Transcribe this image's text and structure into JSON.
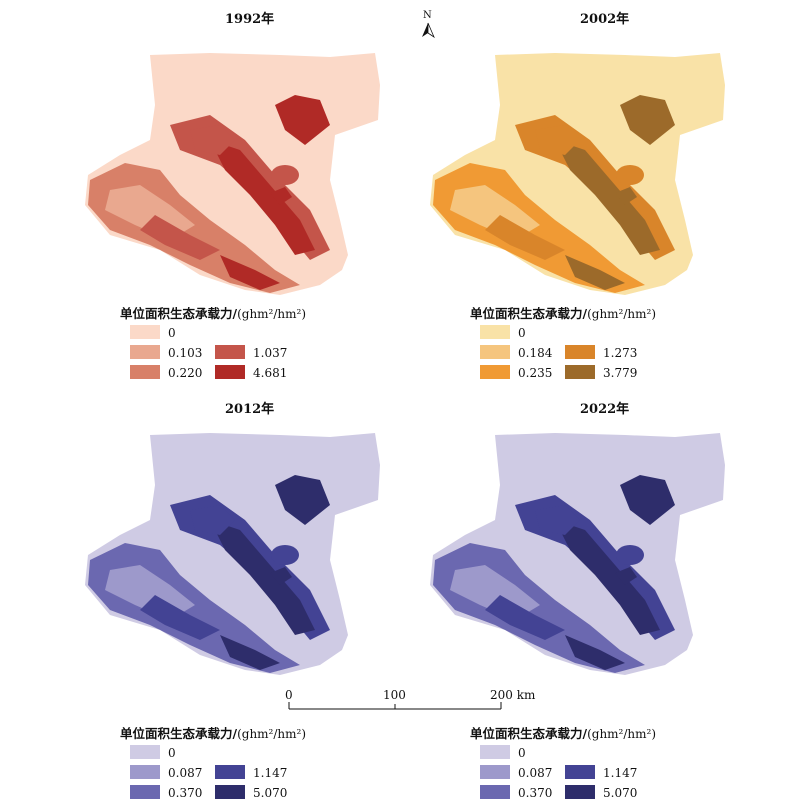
{
  "maps": [
    {
      "year": "1992年",
      "colors": [
        "#fbd9c8",
        "#e9a88f",
        "#d88068",
        "#c4554a",
        "#b02a26"
      ],
      "values": [
        "0",
        "0.103",
        "0.220",
        "1.037",
        "4.681"
      ]
    },
    {
      "year": "2002年",
      "colors": [
        "#f9e2a7",
        "#f5c57e",
        "#f09a34",
        "#d9852a",
        "#9c6a2a"
      ],
      "values": [
        "0",
        "0.184",
        "0.235",
        "1.273",
        "3.779"
      ]
    },
    {
      "year": "2012年",
      "colors": [
        "#cfcbe4",
        "#9d99cb",
        "#6b68b0",
        "#434394",
        "#2e2d6b"
      ],
      "values": [
        "0",
        "0.087",
        "0.370",
        "1.147",
        "5.070"
      ]
    },
    {
      "year": "2022年",
      "colors": [
        "#cfcbe4",
        "#9d99cb",
        "#6b68b0",
        "#434394",
        "#2e2d6b"
      ],
      "values": [
        "0",
        "0.087",
        "0.370",
        "1.147",
        "5.070"
      ]
    }
  ],
  "legend_title": "单位面积生态承载力/",
  "legend_unit_html": "(ghm²/hm²)",
  "north_label": "N",
  "scale_bar": {
    "ticks": [
      "0",
      "100",
      "200 km"
    ]
  }
}
